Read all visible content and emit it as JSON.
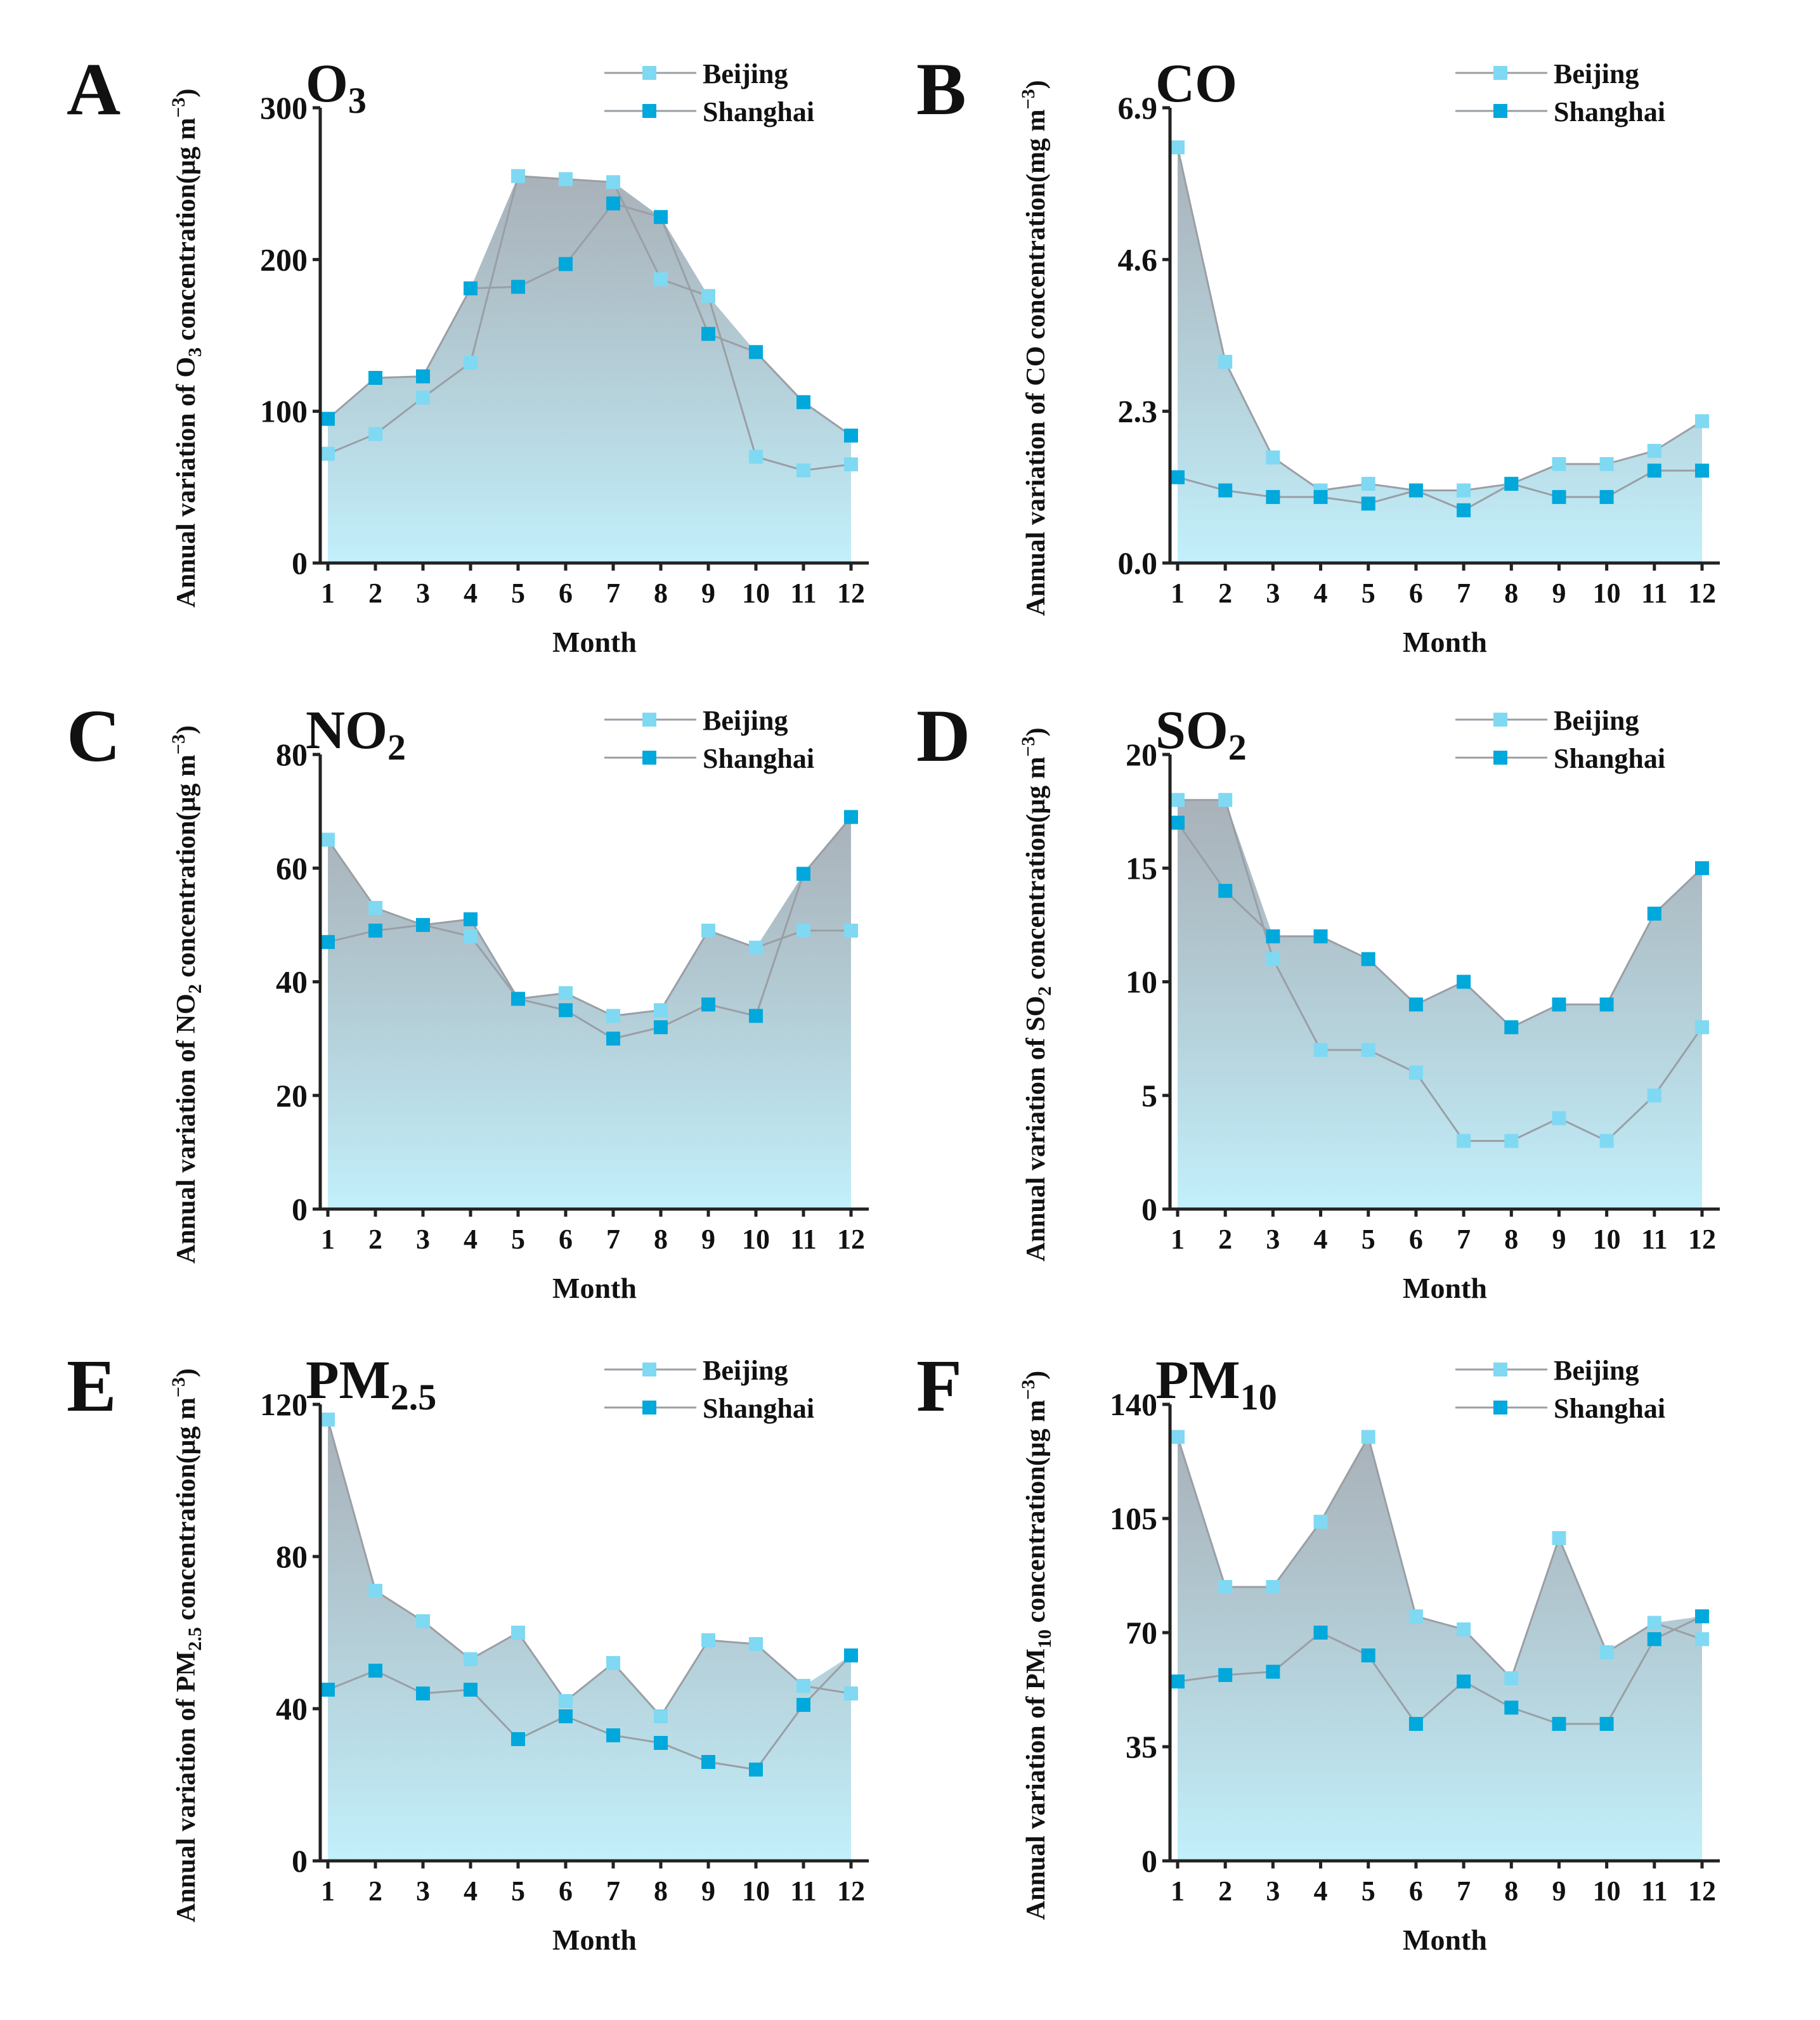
{
  "figure": {
    "colors": {
      "beijing_marker": "#7fd9f2",
      "shanghai_marker": "#00a8dc",
      "line": "#9a9fa5",
      "fill_top": "#9aa4ad",
      "fill_bottom": "#c2f0fb",
      "axis": "#222222"
    },
    "legend": [
      "Beijing",
      "Shanghai"
    ]
  },
  "chart_data": [
    {
      "panel": "A",
      "type": "area",
      "title": "O",
      "title_sub": "3",
      "ylabel_parts": [
        "Annual variation of O",
        "3",
        " concentration(μg m",
        "−3",
        ")"
      ],
      "xlabel": "Month",
      "x": [
        1,
        2,
        3,
        4,
        5,
        6,
        7,
        8,
        9,
        10,
        11,
        12
      ],
      "ylim": [
        0,
        300
      ],
      "yticks": [
        0,
        100,
        200,
        300
      ],
      "ytick_labels": [
        "0",
        "100",
        "200",
        "300"
      ],
      "series": [
        {
          "name": "Beijing",
          "values": [
            72,
            85,
            109,
            132,
            255,
            253,
            251,
            187,
            176,
            70,
            61,
            65
          ]
        },
        {
          "name": "Shanghai",
          "values": [
            95,
            122,
            123,
            181,
            182,
            197,
            237,
            228,
            151,
            139,
            106,
            84
          ]
        }
      ]
    },
    {
      "panel": "B",
      "type": "area",
      "title": "CO",
      "title_sub": "",
      "ylabel_parts": [
        "Annual variation of CO concentration(mg m",
        "−3",
        ")",
        "",
        ""
      ],
      "xlabel": "Month",
      "x": [
        1,
        2,
        3,
        4,
        5,
        6,
        7,
        8,
        9,
        10,
        11,
        12
      ],
      "ylim": [
        0,
        6.9
      ],
      "yticks": [
        0,
        2.3,
        4.6,
        6.9
      ],
      "ytick_labels": [
        "0.0",
        "2.3",
        "4.6",
        "6.9"
      ],
      "series": [
        {
          "name": "Beijing",
          "values": [
            6.3,
            3.05,
            1.6,
            1.1,
            1.2,
            1.1,
            1.1,
            1.2,
            1.5,
            1.5,
            1.7,
            2.15
          ]
        },
        {
          "name": "Shanghai",
          "values": [
            1.3,
            1.1,
            1.0,
            1.0,
            0.9,
            1.1,
            0.8,
            1.2,
            1.0,
            1.0,
            1.4,
            1.4
          ]
        }
      ]
    },
    {
      "panel": "C",
      "type": "area",
      "title": "NO",
      "title_sub": "2",
      "ylabel_parts": [
        "Annual variation of NO",
        "2",
        " concentration(μg m",
        "−3",
        ")"
      ],
      "xlabel": "Month",
      "x": [
        1,
        2,
        3,
        4,
        5,
        6,
        7,
        8,
        9,
        10,
        11,
        12
      ],
      "ylim": [
        0,
        80
      ],
      "yticks": [
        0,
        20,
        40,
        60,
        80
      ],
      "ytick_labels": [
        "0",
        "20",
        "40",
        "60",
        "80"
      ],
      "series": [
        {
          "name": "Beijing",
          "values": [
            65,
            53,
            50,
            48,
            37,
            38,
            34,
            35,
            49,
            46,
            49,
            49
          ]
        },
        {
          "name": "Shanghai",
          "values": [
            47,
            49,
            50,
            51,
            37,
            35,
            30,
            32,
            36,
            34,
            59,
            69
          ]
        }
      ]
    },
    {
      "panel": "D",
      "type": "area",
      "title": "SO",
      "title_sub": "2",
      "ylabel_parts": [
        "Annual variation of SO",
        "2",
        " concentration(μg m",
        "−3",
        ")"
      ],
      "xlabel": "Month",
      "x": [
        1,
        2,
        3,
        4,
        5,
        6,
        7,
        8,
        9,
        10,
        11,
        12
      ],
      "ylim": [
        0,
        20
      ],
      "yticks": [
        0,
        5,
        10,
        15,
        20
      ],
      "ytick_labels": [
        "0",
        "5",
        "10",
        "15",
        "20"
      ],
      "series": [
        {
          "name": "Beijing",
          "values": [
            18,
            18,
            11,
            7,
            7,
            6,
            3,
            3,
            4,
            3,
            5,
            8
          ]
        },
        {
          "name": "Shanghai",
          "values": [
            17,
            14,
            12,
            12,
            11,
            9,
            10,
            8,
            9,
            9,
            13,
            15
          ]
        }
      ]
    },
    {
      "panel": "E",
      "type": "area",
      "title": "PM",
      "title_sub": "2.5",
      "ylabel_parts": [
        "Annual variation of PM",
        "2.5",
        " concentration(μg m",
        "−3",
        ")"
      ],
      "xlabel": "Month",
      "x": [
        1,
        2,
        3,
        4,
        5,
        6,
        7,
        8,
        9,
        10,
        11,
        12
      ],
      "ylim": [
        0,
        120
      ],
      "yticks": [
        0,
        40,
        80,
        120
      ],
      "ytick_labels": [
        "0",
        "40",
        "80",
        "120"
      ],
      "series": [
        {
          "name": "Beijing",
          "values": [
            116,
            71,
            63,
            53,
            60,
            42,
            52,
            38,
            58,
            57,
            46,
            44
          ]
        },
        {
          "name": "Shanghai",
          "values": [
            45,
            50,
            44,
            45,
            32,
            38,
            33,
            31,
            26,
            24,
            41,
            54
          ]
        }
      ]
    },
    {
      "panel": "F",
      "type": "area",
      "title": "PM",
      "title_sub": "10",
      "ylabel_parts": [
        "Annual variation of PM",
        "10",
        " concentration(μg m",
        "−3",
        ")"
      ],
      "xlabel": "Month",
      "x": [
        1,
        2,
        3,
        4,
        5,
        6,
        7,
        8,
        9,
        10,
        11,
        12
      ],
      "ylim": [
        0,
        140
      ],
      "yticks": [
        0,
        35,
        70,
        105,
        140
      ],
      "ytick_labels": [
        "0",
        "35",
        "70",
        "105",
        "140"
      ],
      "series": [
        {
          "name": "Beijing",
          "values": [
            130,
            84,
            84,
            104,
            130,
            75,
            71,
            56,
            99,
            64,
            73,
            68
          ]
        },
        {
          "name": "Shanghai",
          "values": [
            55,
            57,
            58,
            70,
            63,
            42,
            55,
            47,
            42,
            42,
            68,
            75
          ]
        }
      ]
    }
  ]
}
